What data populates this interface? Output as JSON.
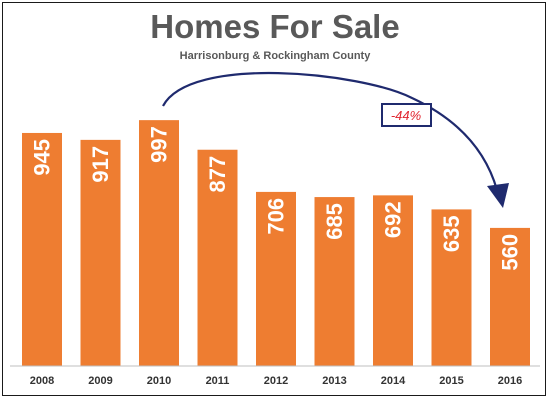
{
  "chart_data": {
    "type": "bar",
    "title": "Homes For Sale",
    "subtitle": "Harrisonburg & Rockingham County",
    "categories": [
      "2008",
      "2009",
      "2010",
      "2011",
      "2012",
      "2013",
      "2014",
      "2015",
      "2016"
    ],
    "values": [
      945,
      917,
      997,
      877,
      706,
      685,
      692,
      635,
      560
    ],
    "ylim": [
      0,
      1000
    ],
    "grid": false,
    "legend": "none",
    "bar_color": "#ee7d31",
    "annotation": {
      "text": "-44%",
      "from_category": "2010",
      "to_category": "2016",
      "arrow_color": "#1f2a6e",
      "text_color": "#e0242e"
    }
  }
}
